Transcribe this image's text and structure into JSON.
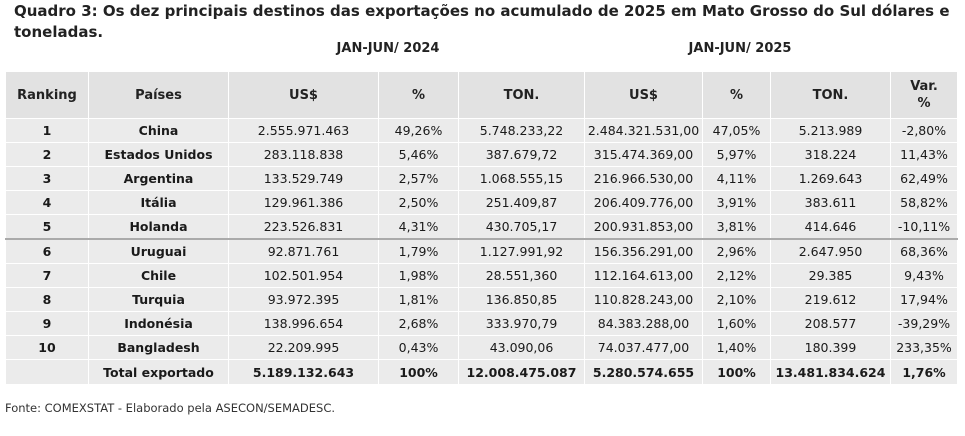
{
  "title": "Quadro 3: Os dez principais destinos das exportações no acumulado de 2025 em Mato Grosso do Sul dólares e toneladas.",
  "periods": {
    "p2024": "JAN-JUN/ 2024",
    "p2025": "JAN-JUN/ 2025"
  },
  "headers": {
    "ranking": "Ranking",
    "paises": "Países",
    "usd_2024": "US$",
    "pct_2024": "%",
    "ton_2024": "TON.",
    "usd_2025": "US$",
    "pct_2025": "%",
    "ton_2025": "TON.",
    "var_line1": "Var.",
    "var_line2": "%"
  },
  "rows": [
    {
      "rank": "1",
      "country": "China",
      "usd_2024": "2.555.971.463",
      "pct_2024": "49,26%",
      "ton_2024": "5.748.233,22",
      "usd_2025": "2.484.321.531,00",
      "pct_2025": "47,05%",
      "ton_2025": "5.213.989",
      "var": "-2,80%"
    },
    {
      "rank": "2",
      "country": "Estados Unidos",
      "usd_2024": "283.118.838",
      "pct_2024": "5,46%",
      "ton_2024": "387.679,72",
      "usd_2025": "315.474.369,00",
      "pct_2025": "5,97%",
      "ton_2025": "318.224",
      "var": "11,43%"
    },
    {
      "rank": "3",
      "country": "Argentina",
      "usd_2024": "133.529.749",
      "pct_2024": "2,57%",
      "ton_2024": "1.068.555,15",
      "usd_2025": "216.966.530,00",
      "pct_2025": "4,11%",
      "ton_2025": "1.269.643",
      "var": "62,49%"
    },
    {
      "rank": "4",
      "country": "Itália",
      "usd_2024": "129.961.386",
      "pct_2024": "2,50%",
      "ton_2024": "251.409,87",
      "usd_2025": "206.409.776,00",
      "pct_2025": "3,91%",
      "ton_2025": "383.611",
      "var": "58,82%"
    },
    {
      "rank": "5",
      "country": "Holanda",
      "usd_2024": "223.526.831",
      "pct_2024": "4,31%",
      "ton_2024": "430.705,17",
      "usd_2025": "200.931.853,00",
      "pct_2025": "3,81%",
      "ton_2025": "414.646",
      "var": "-10,11%"
    },
    {
      "rank": "6",
      "country": "Uruguai",
      "usd_2024": "92.871.761",
      "pct_2024": "1,79%",
      "ton_2024": "1.127.991,92",
      "usd_2025": "156.356.291,00",
      "pct_2025": "2,96%",
      "ton_2025": "2.647.950",
      "var": "68,36%"
    },
    {
      "rank": "7",
      "country": "Chile",
      "usd_2024": "102.501.954",
      "pct_2024": "1,98%",
      "ton_2024": "28.551,360",
      "usd_2025": "112.164.613,00",
      "pct_2025": "2,12%",
      "ton_2025": "29.385",
      "var": "9,43%"
    },
    {
      "rank": "8",
      "country": "Turquia",
      "usd_2024": "93.972.395",
      "pct_2024": "1,81%",
      "ton_2024": "136.850,85",
      "usd_2025": "110.828.243,00",
      "pct_2025": "2,10%",
      "ton_2025": "219.612",
      "var": "17,94%"
    },
    {
      "rank": "9",
      "country": "Indonésia",
      "usd_2024": "138.996.654",
      "pct_2024": "2,68%",
      "ton_2024": "333.970,79",
      "usd_2025": "84.383.288,00",
      "pct_2025": "1,60%",
      "ton_2025": "208.577",
      "var": "-39,29%"
    },
    {
      "rank": "10",
      "country": "Bangladesh",
      "usd_2024": "22.209.995",
      "pct_2024": "0,43%",
      "ton_2024": "43.090,06",
      "usd_2025": "74.037.477,00",
      "pct_2025": "1,40%",
      "ton_2025": "180.399",
      "var": "233,35%"
    }
  ],
  "total": {
    "label": "Total exportado",
    "usd_2024": "5.189.132.643",
    "pct_2024": "100%",
    "ton_2024": "12.008.475.087",
    "usd_2025": "5.280.574.655",
    "pct_2025": "100%",
    "ton_2025": "13.481.834.624",
    "var": "1,76%"
  },
  "source": "Fonte: COMEXSTAT - Elaborado pela ASECON/SEMADESC."
}
